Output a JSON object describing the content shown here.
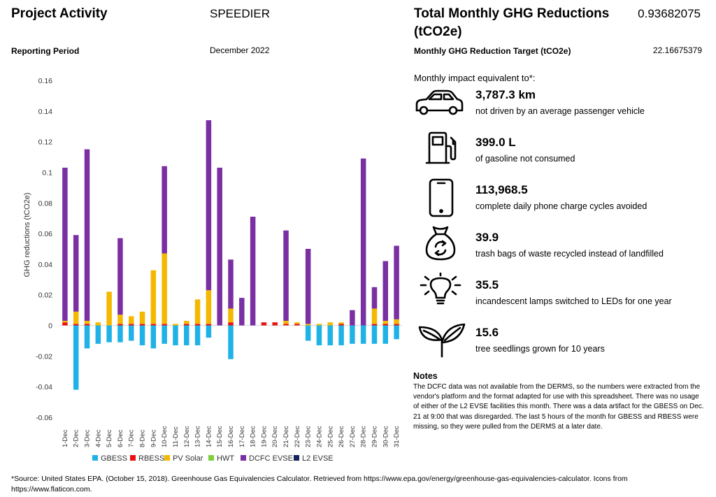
{
  "header": {
    "project_label": "Project Activity",
    "project_value": "SPEEDIER",
    "period_label": "Reporting Period",
    "period_value": "December 2022",
    "total_label_line1": "Total Monthly GHG Reductions",
    "total_label_line2": "(tCO2e)",
    "total_value": "0.93682075",
    "target_label": "Monthly GHG Reduction Target (tCO2e)",
    "target_value": "22.16675379"
  },
  "impacts": {
    "intro": "Monthly impact equivalent to*:",
    "items": [
      {
        "icon": "car-icon",
        "value": "3,787.3 km",
        "desc": "not driven by an average passenger vehicle"
      },
      {
        "icon": "fuel-pump-icon",
        "value": "399.0 L",
        "desc": "of gasoline not consumed"
      },
      {
        "icon": "phone-icon",
        "value": "113,968.5",
        "desc": "complete daily phone charge cycles avoided"
      },
      {
        "icon": "recycle-bag-icon",
        "value": "39.9",
        "desc": "trash bags of waste recycled instead of landfilled"
      },
      {
        "icon": "lightbulb-icon",
        "value": "35.5",
        "desc": "incandescent lamps switched to LEDs for one year"
      },
      {
        "icon": "seedling-icon",
        "value": "15.6",
        "desc": "tree seedlings grown for 10 years"
      }
    ]
  },
  "notes": {
    "title": "Notes",
    "body": "The DCFC data was not available from the DERMS, so the numbers were extracted from the vendor's platform and the format adapted for use with this spreadsheet. There was no usage of either of the L2 EVSE facilities this month. There was a data artifact for the GBESS on Dec. 21 at 9:00 that was disregarded. The last 5 hours of the month for GBESS and RBESS were missing, so they were pulled from the DERMS at a later date."
  },
  "footnote": "*Source: United States EPA. (October 15, 2018). Greenhouse Gas Equivalencies Calculator. Retrieved from https://www.epa.gov/energy/greenhouse-gas-equivalencies-calculator. Icons from https://www.flaticon.com.",
  "colors": {
    "GBESS": "#1fb2e6",
    "RBESS": "#e81010",
    "PV Solar": "#f5b800",
    "HWT": "#7dcf3c",
    "DCFC EVSE": "#7a2fa2",
    "L2 EVSE": "#15235e"
  },
  "chart_data": {
    "type": "bar",
    "stacked": true,
    "ylabel": "GHG reductions (tCO2e)",
    "xlabel": "",
    "ylim": [
      -0.06,
      0.16
    ],
    "yticks": [
      "0.16",
      "0.14",
      "0.12",
      "0.1",
      "0.08",
      "0.06",
      "0.04",
      "0.02",
      "0",
      "-0.02",
      "-0.04",
      "-0.06"
    ],
    "yticks_values": [
      0.16,
      0.14,
      0.12,
      0.1,
      0.08,
      0.06,
      0.04,
      0.02,
      0,
      -0.02,
      -0.04,
      -0.06
    ],
    "legend_position": "bottom",
    "categories": [
      "1-Dec",
      "2-Dec",
      "3-Dec",
      "4-Dec",
      "5-Dec",
      "6-Dec",
      "7-Dec",
      "8-Dec",
      "9-Dec",
      "10-Dec",
      "11-Dec",
      "12-Dec",
      "13-Dec",
      "14-Dec",
      "15-Dec",
      "16-Dec",
      "17-Dec",
      "18-Dec",
      "19-Dec",
      "20-Dec",
      "21-Dec",
      "22-Dec",
      "23-Dec",
      "24-Dec",
      "25-Dec",
      "26-Dec",
      "27-Dec",
      "28-Dec",
      "29-Dec",
      "30-Dec",
      "31-Dec"
    ],
    "series": [
      {
        "name": "GBESS",
        "values": [
          0,
          -0.042,
          -0.015,
          -0.012,
          -0.011,
          -0.011,
          -0.01,
          -0.013,
          -0.015,
          -0.012,
          -0.013,
          -0.013,
          -0.013,
          -0.008,
          0,
          -0.022,
          0,
          0,
          0,
          0,
          0,
          0,
          -0.01,
          -0.013,
          -0.013,
          -0.013,
          -0.012,
          -0.012,
          -0.012,
          -0.012,
          -0.009
        ]
      },
      {
        "name": "RBESS",
        "values": [
          0.002,
          0.001,
          0.001,
          0,
          0,
          0.001,
          0.001,
          0.001,
          0.001,
          0.001,
          0,
          0.001,
          0.001,
          0.001,
          0,
          0.002,
          0,
          0,
          0.002,
          0.002,
          0.001,
          0.001,
          0,
          0,
          0,
          0.001,
          0,
          0,
          0.001,
          0.001,
          0.001
        ]
      },
      {
        "name": "PV Solar",
        "values": [
          0.001,
          0.008,
          0.002,
          0.002,
          0.022,
          0.006,
          0.005,
          0.008,
          0.035,
          0.046,
          0.001,
          0.002,
          0.016,
          0.022,
          0,
          0.009,
          0,
          0,
          0,
          0,
          0.002,
          0.001,
          0.001,
          0.001,
          0.002,
          0.001,
          0,
          0,
          0.01,
          0.002,
          0.003
        ]
      },
      {
        "name": "HWT",
        "values": [
          0,
          0,
          0,
          0,
          0,
          0,
          0,
          0,
          0,
          0,
          0,
          0,
          0,
          0,
          0,
          0,
          0,
          0,
          0,
          0,
          0,
          0,
          0,
          0,
          0,
          0,
          0,
          0,
          0,
          0,
          0
        ]
      },
      {
        "name": "DCFC EVSE",
        "values": [
          0.1,
          0.05,
          0.112,
          0,
          0,
          0.05,
          0,
          0,
          0,
          0.057,
          0,
          0,
          0,
          0.111,
          0.103,
          0.032,
          0.018,
          0.071,
          0,
          0,
          0.059,
          0,
          0.049,
          0,
          0,
          0,
          0.01,
          0.109,
          0.014,
          0.039,
          0.048
        ]
      },
      {
        "name": "L2 EVSE",
        "values": [
          0,
          0,
          0,
          0,
          0,
          0,
          0,
          0,
          0,
          0,
          0,
          0,
          0,
          0,
          0,
          0,
          0,
          0,
          0,
          0,
          0,
          0,
          0,
          0,
          0,
          0,
          0,
          0,
          0,
          0,
          0
        ]
      }
    ]
  }
}
